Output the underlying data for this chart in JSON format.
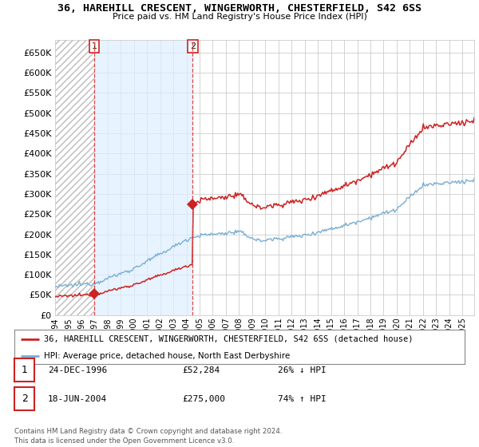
{
  "title": "36, HAREHILL CRESCENT, WINGERWORTH, CHESTERFIELD, S42 6SS",
  "subtitle": "Price paid vs. HM Land Registry's House Price Index (HPI)",
  "legend_line1": "36, HAREHILL CRESCENT, WINGERWORTH, CHESTERFIELD, S42 6SS (detached house)",
  "legend_line2": "HPI: Average price, detached house, North East Derbyshire",
  "sale1_label": "1",
  "sale1_date": "24-DEC-1996",
  "sale1_price": "£52,284",
  "sale1_hpi": "26% ↓ HPI",
  "sale2_label": "2",
  "sale2_date": "18-JUN-2004",
  "sale2_price": "£275,000",
  "sale2_hpi": "74% ↑ HPI",
  "footer": "Contains HM Land Registry data © Crown copyright and database right 2024.\nThis data is licensed under the Open Government Licence v3.0.",
  "hpi_color": "#7aaed4",
  "sale_color": "#cc2222",
  "marker_color": "#cc2222",
  "background_color": "#ffffff",
  "grid_color": "#cccccc",
  "ylim": [
    0,
    680000
  ],
  "yticks": [
    0,
    50000,
    100000,
    150000,
    200000,
    250000,
    300000,
    350000,
    400000,
    450000,
    500000,
    550000,
    600000,
    650000
  ],
  "sale1_x": 1996.98,
  "sale1_y": 52284,
  "sale2_x": 2004.47,
  "sale2_y": 275000,
  "vline1_x": 1996.98,
  "vline2_x": 2004.47,
  "xlim_left": 1994.0,
  "xlim_right": 2025.9
}
